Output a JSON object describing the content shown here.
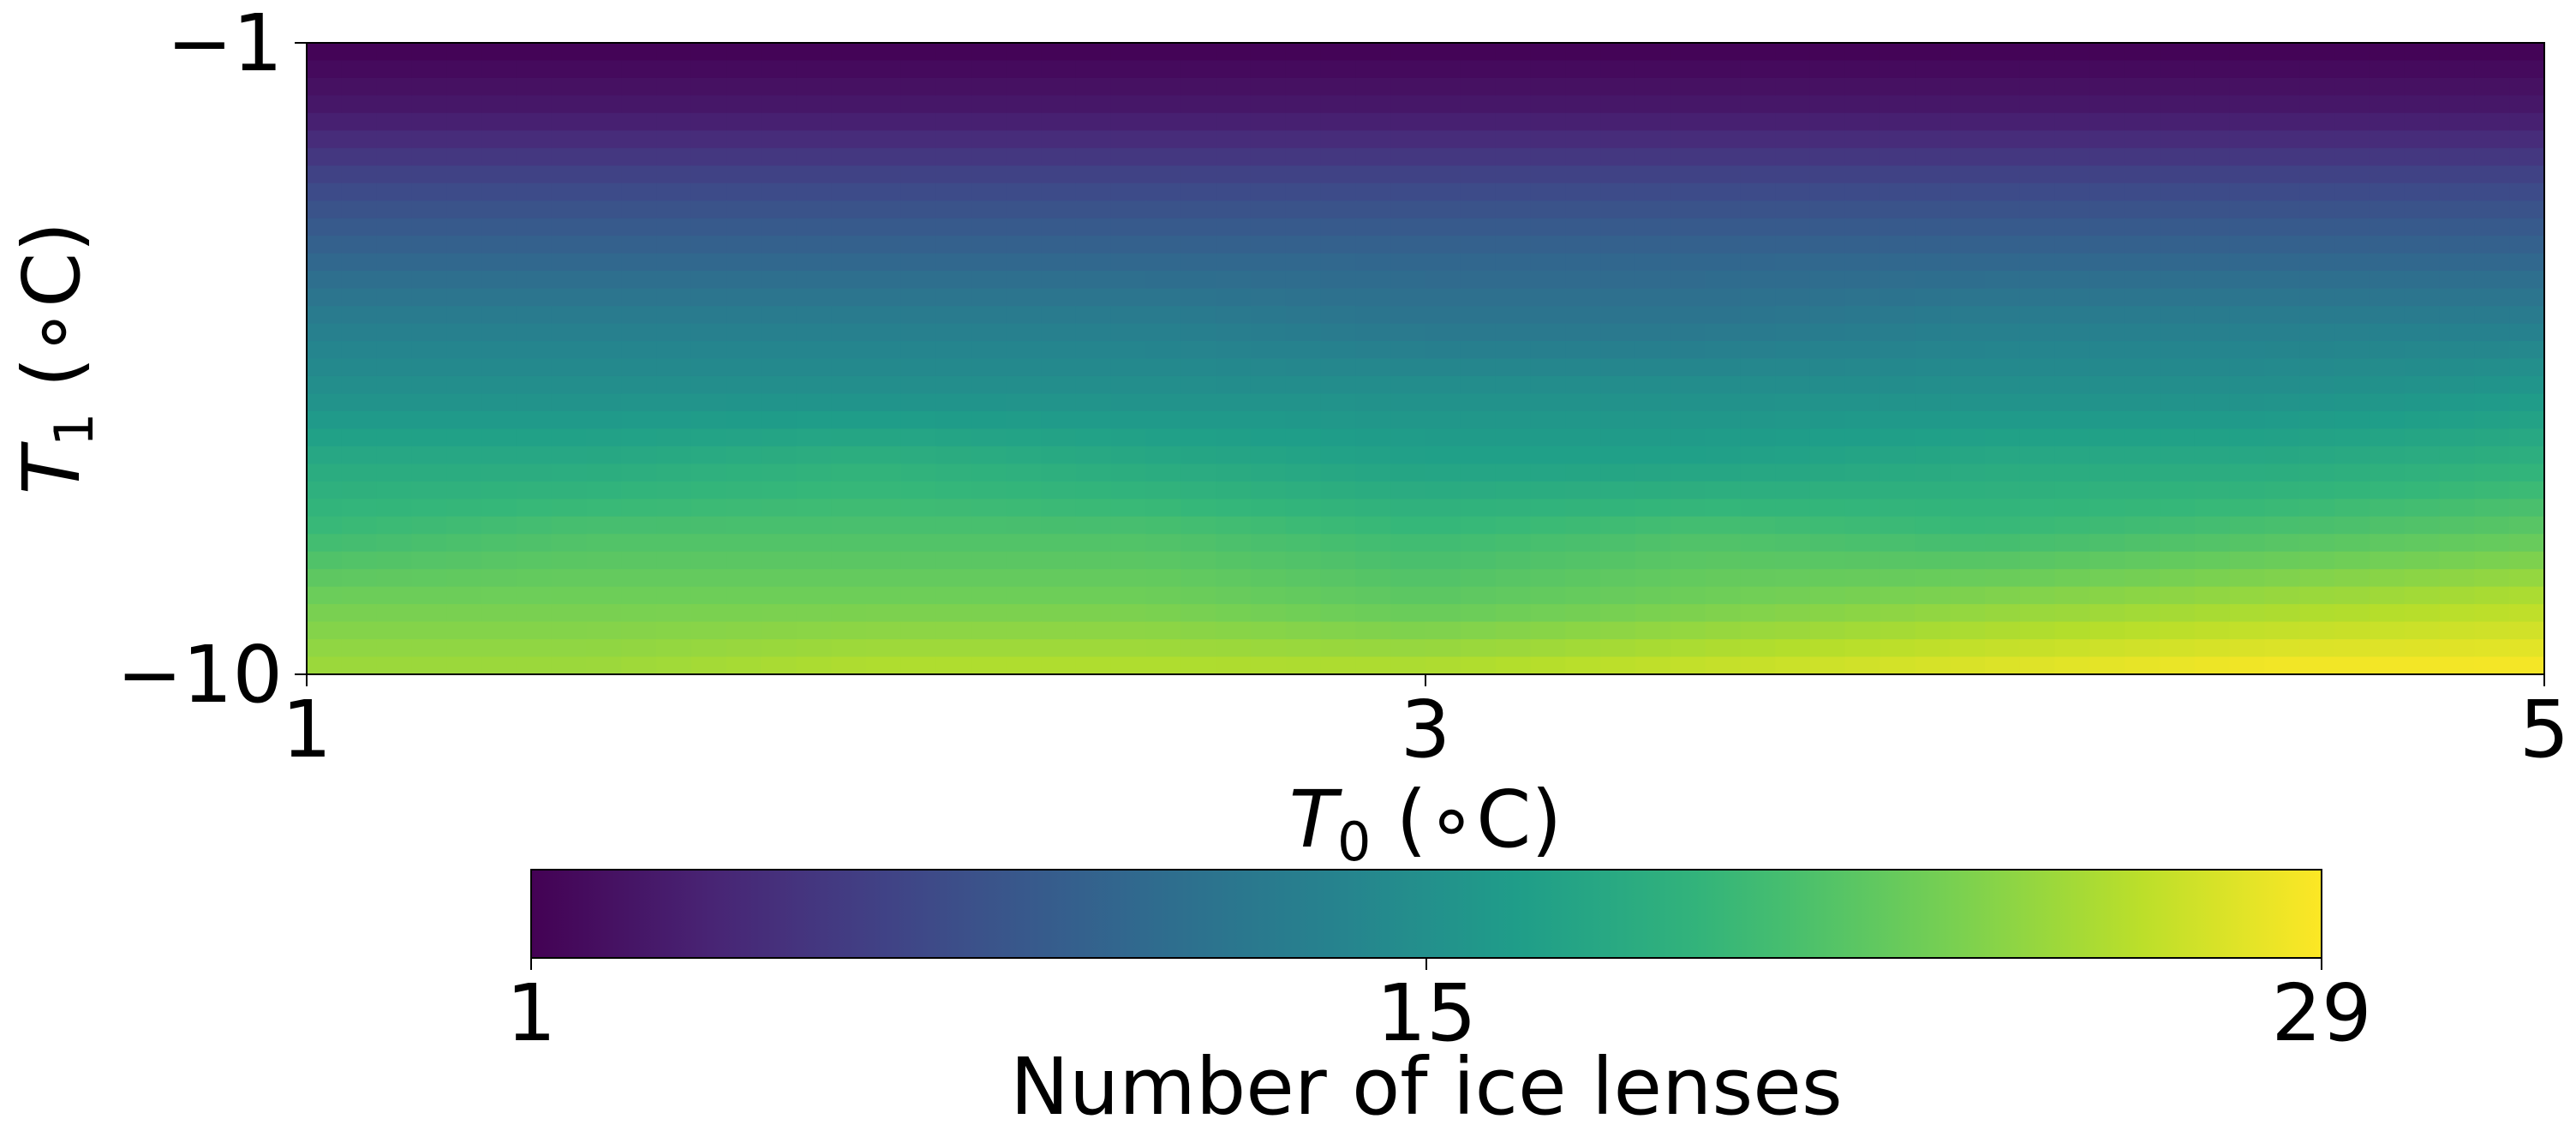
{
  "chart_data": {
    "type": "heatmap",
    "x": {
      "label_var": "T",
      "label_sub": "0",
      "label_unit": " (∘C)",
      "range": [
        1,
        5
      ],
      "ticks": [
        1,
        3,
        5
      ],
      "tick_labels": [
        "1",
        "3",
        "5"
      ]
    },
    "y": {
      "label_var": "T",
      "label_sub": "1",
      "label_unit": " (∘C)",
      "range": [
        -10,
        -1
      ],
      "ticks": [
        -1,
        -10
      ],
      "tick_labels": [
        "−1",
        "−10"
      ]
    },
    "colorbar": {
      "label": "Number of ice lenses",
      "range": [
        1,
        29
      ],
      "ticks": [
        1,
        15,
        29
      ],
      "tick_labels": [
        "1",
        "15",
        "29"
      ],
      "colormap": "viridis",
      "placement": "bottom"
    },
    "grid": false,
    "x_values": [
      1.0,
      1.5,
      2.0,
      2.5,
      3.0,
      3.5,
      4.0,
      4.5,
      5.0
    ],
    "y_values": [
      -1,
      -2,
      -3,
      -4,
      -5,
      -6,
      -7,
      -8,
      -9,
      -10
    ],
    "z_rows": [
      [
        1,
        1,
        1,
        1,
        1,
        1,
        1,
        1,
        1
      ],
      [
        3,
        3,
        3,
        3,
        3,
        3,
        3,
        3,
        3
      ],
      [
        7,
        7,
        7,
        7,
        7,
        7,
        7,
        7,
        7
      ],
      [
        10,
        10,
        10,
        10,
        10,
        10,
        10,
        10,
        10
      ],
      [
        13,
        13,
        13,
        13,
        12,
        12,
        13,
        13,
        13
      ],
      [
        15,
        15,
        15,
        15,
        15,
        15,
        15,
        15,
        16
      ],
      [
        18,
        18,
        19,
        18,
        17,
        17,
        18,
        18,
        19
      ],
      [
        20,
        21,
        21,
        21,
        20,
        21,
        20,
        21,
        22
      ],
      [
        23,
        23,
        23,
        23,
        22,
        23,
        24,
        25,
        26
      ],
      [
        25,
        25,
        26,
        26,
        26,
        27,
        28,
        29,
        29
      ]
    ]
  }
}
